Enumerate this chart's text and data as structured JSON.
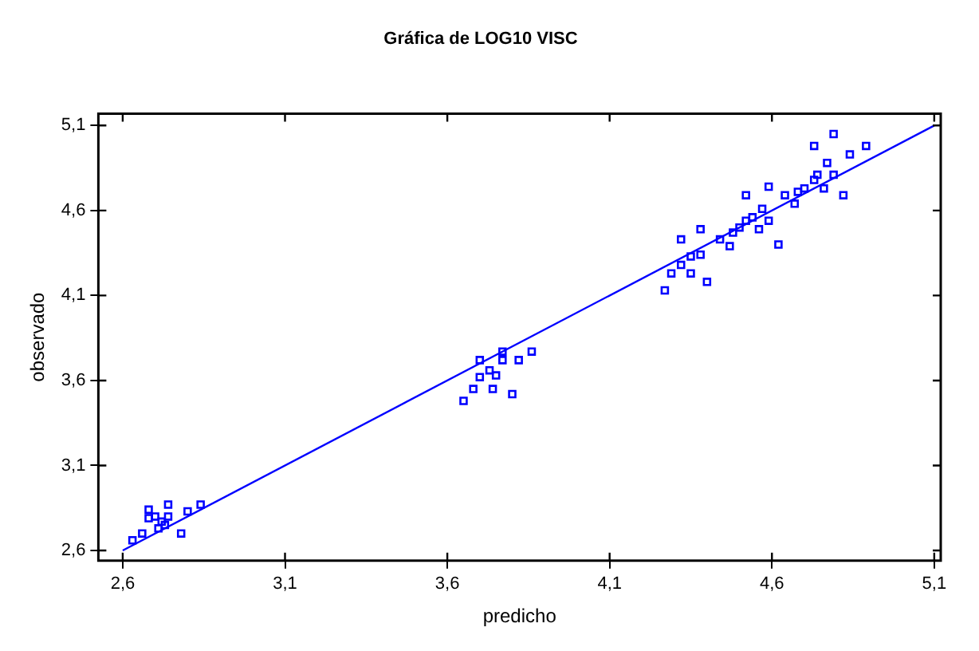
{
  "chart_data": {
    "type": "scatter",
    "title": "Gráfica de LOG10 VISC",
    "xlabel": "predicho",
    "ylabel": "observado",
    "xlim": [
      2.525,
      5.12
    ],
    "ylim": [
      2.54,
      5.17
    ],
    "xticks": [
      {
        "value": 2.6,
        "label": "2,6"
      },
      {
        "value": 3.1,
        "label": "3,1"
      },
      {
        "value": 3.6,
        "label": "3,6"
      },
      {
        "value": 4.1,
        "label": "4,1"
      },
      {
        "value": 4.6,
        "label": "4,6"
      },
      {
        "value": 5.1,
        "label": "5,1"
      }
    ],
    "yticks": [
      {
        "value": 2.6,
        "label": "2,6"
      },
      {
        "value": 3.1,
        "label": "3,1"
      },
      {
        "value": 3.6,
        "label": "3,6"
      },
      {
        "value": 4.1,
        "label": "4,1"
      },
      {
        "value": 4.6,
        "label": "4,6"
      },
      {
        "value": 5.1,
        "label": "5,1"
      }
    ],
    "grid": false,
    "legend": false,
    "marker": "square",
    "series": [
      {
        "type": "scatter",
        "color": "#0000ff",
        "x": [
          2.63,
          2.66,
          2.68,
          2.68,
          2.7,
          2.71,
          2.72,
          2.73,
          2.74,
          2.74,
          2.78,
          2.8,
          2.84,
          3.65,
          3.68,
          3.7,
          3.7,
          3.73,
          3.74,
          3.75,
          3.77,
          3.77,
          3.8,
          3.82,
          3.86,
          4.27,
          4.29,
          4.32,
          4.32,
          4.35,
          4.35,
          4.38,
          4.38,
          4.4,
          4.44,
          4.47,
          4.48,
          4.5,
          4.52,
          4.52,
          4.54,
          4.56,
          4.57,
          4.59,
          4.59,
          4.62,
          4.64,
          4.67,
          4.68,
          4.7,
          4.73,
          4.73,
          4.74,
          4.76,
          4.77,
          4.79,
          4.79,
          4.82,
          4.84,
          4.89
        ],
        "values": [
          2.66,
          2.7,
          2.84,
          2.79,
          2.8,
          2.73,
          2.77,
          2.75,
          2.87,
          2.8,
          2.7,
          2.83,
          2.87,
          3.48,
          3.55,
          3.72,
          3.62,
          3.66,
          3.55,
          3.63,
          3.77,
          3.72,
          3.52,
          3.72,
          3.77,
          4.13,
          4.23,
          4.43,
          4.28,
          4.23,
          4.33,
          4.49,
          4.34,
          4.18,
          4.43,
          4.39,
          4.47,
          4.5,
          4.69,
          4.54,
          4.56,
          4.49,
          4.61,
          4.74,
          4.54,
          4.4,
          4.69,
          4.64,
          4.71,
          4.73,
          4.78,
          4.98,
          4.81,
          4.73,
          4.88,
          5.05,
          4.81,
          4.69,
          4.93,
          4.98
        ]
      },
      {
        "type": "line",
        "color": "#0000ff",
        "marker": "none",
        "x": [
          2.6,
          5.1
        ],
        "values": [
          2.6,
          5.1
        ]
      }
    ]
  }
}
